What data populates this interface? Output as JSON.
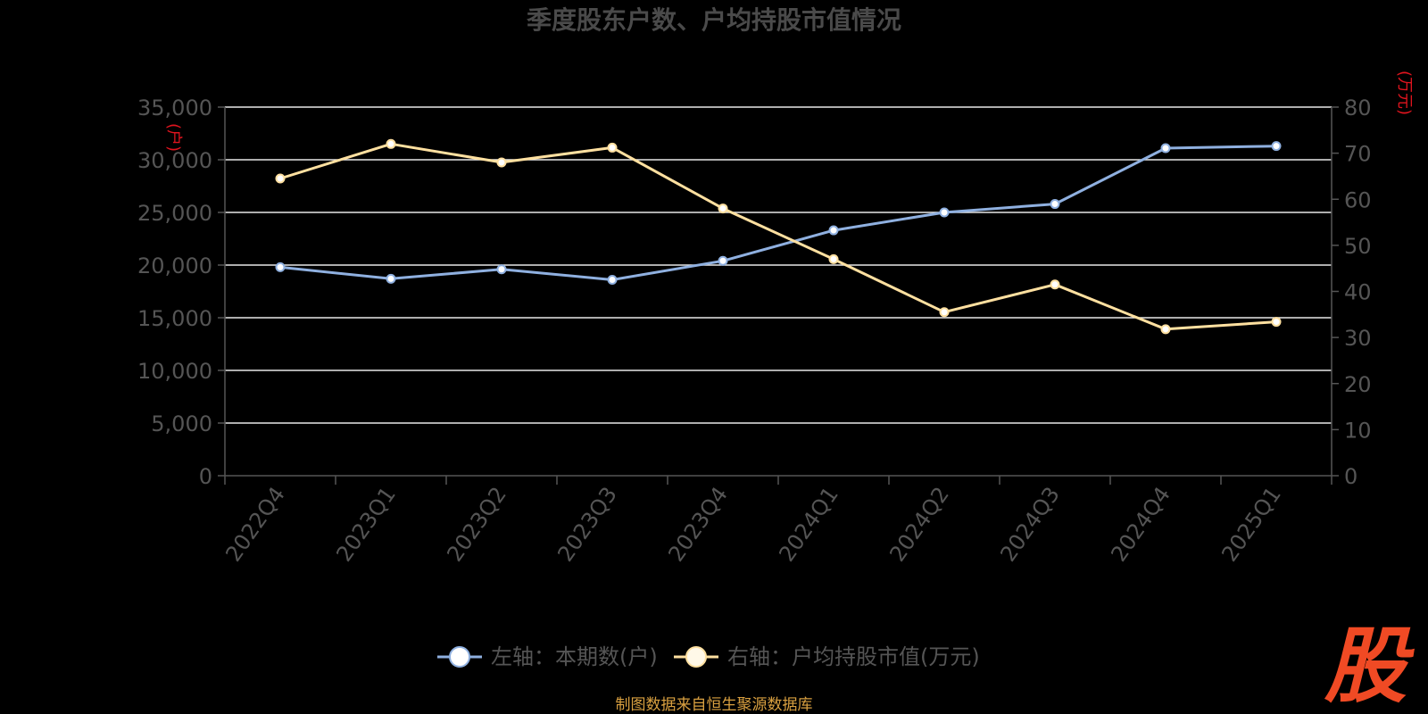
{
  "chart_data": {
    "type": "line",
    "title": "季度股东户数、户均持股市值情况",
    "categories": [
      "2022Q4",
      "2023Q1",
      "2023Q2",
      "2023Q3",
      "2023Q4",
      "2024Q1",
      "2024Q2",
      "2024Q3",
      "2024Q4",
      "2025Q1"
    ],
    "left_axis": {
      "unit_label": "(户)",
      "ylim": [
        0,
        35000
      ],
      "ticks": [
        "0",
        "5,000",
        "10,000",
        "15,000",
        "20,000",
        "25,000",
        "30,000",
        "35,000"
      ]
    },
    "right_axis": {
      "unit_label": "(万元)",
      "ylim": [
        0,
        80
      ],
      "ticks": [
        "0",
        "10",
        "20",
        "30",
        "40",
        "50",
        "60",
        "70",
        "80"
      ]
    },
    "series": [
      {
        "name": "左轴：本期数(户)",
        "axis": "left",
        "color": "#8fb0e0",
        "values": [
          19800,
          18700,
          19600,
          18600,
          20400,
          23300,
          25000,
          25800,
          31100,
          31300
        ]
      },
      {
        "name": "右轴：户均持股市值(万元)",
        "axis": "right",
        "color": "#ffe0a0",
        "values": [
          64.5,
          72.0,
          68.0,
          71.2,
          58.0,
          47.0,
          35.5,
          41.5,
          31.8,
          33.4
        ]
      }
    ],
    "grid": true,
    "legend": "bottom-center"
  },
  "footer": {
    "source": "制图数据来自恒生聚源数据库",
    "logo_char": "股"
  }
}
